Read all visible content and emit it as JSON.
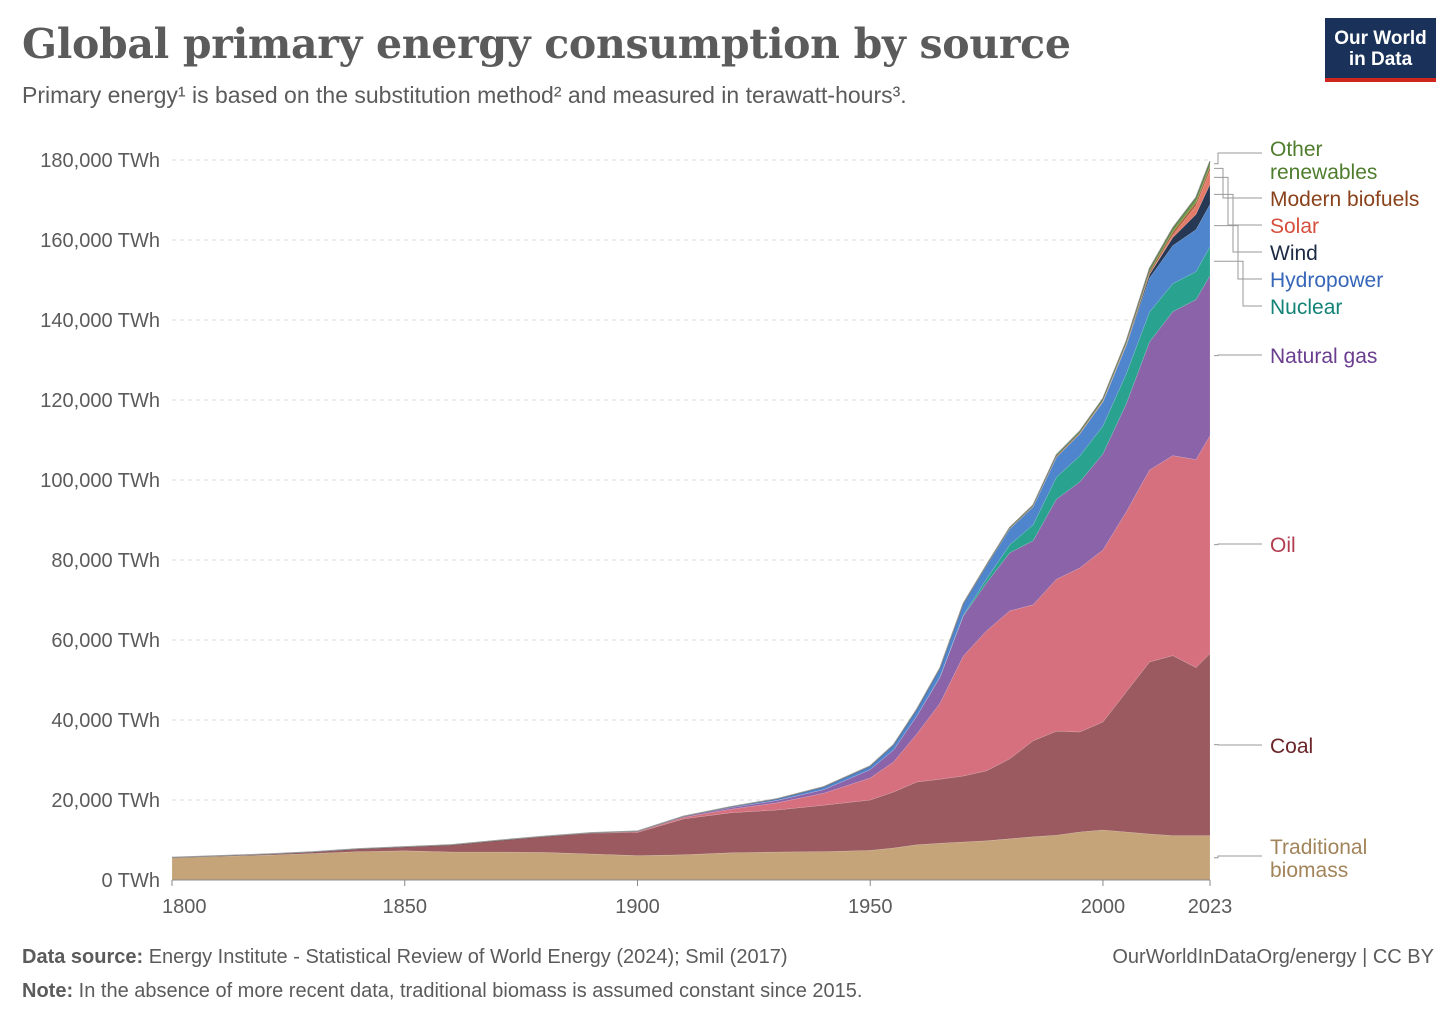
{
  "header": {
    "title": "Global primary energy consumption by source",
    "subtitle": "Primary energy¹ is based on the substitution method² and measured in terawatt-hours³."
  },
  "logo": {
    "line1": "Our World",
    "line2": "in Data"
  },
  "footer": {
    "source_label": "Data source:",
    "source_text": "Energy Institute - Statistical Review of World Energy (2024); Smil (2017)",
    "note_label": "Note:",
    "note_text": "In the absence of more recent data, traditional biomass is assumed constant since 2015.",
    "link": "OurWorldInDataOrg/energy | CC BY"
  },
  "chart_data": {
    "type": "area",
    "stacked": true,
    "x": [
      1800,
      1810,
      1820,
      1830,
      1840,
      1850,
      1860,
      1870,
      1880,
      1890,
      1900,
      1910,
      1920,
      1930,
      1940,
      1950,
      1955,
      1960,
      1965,
      1970,
      1975,
      1980,
      1985,
      1990,
      1995,
      2000,
      2005,
      2010,
      2015,
      2020,
      2023
    ],
    "x_ticks": [
      1800,
      1850,
      1900,
      1950,
      2000,
      2023
    ],
    "y_ticks": [
      "0 TWh",
      "20,000 TWh",
      "40,000 TWh",
      "60,000 TWh",
      "80,000 TWh",
      "100,000 TWh",
      "120,000 TWh",
      "140,000 TWh",
      "160,000 TWh",
      "180,000 TWh"
    ],
    "ylim": [
      0,
      180000
    ],
    "grid": "horizontal dashed",
    "legend": "right, labels at series ends",
    "series": [
      {
        "name": "Traditional biomass",
        "color": "#c5a479",
        "label_color": "#a2845a",
        "values": [
          5560,
          5900,
          6200,
          6600,
          7100,
          7300,
          7000,
          7000,
          6900,
          6500,
          6100,
          6300,
          6800,
          7000,
          7100,
          7400,
          8000,
          8800,
          9200,
          9500,
          9800,
          10300,
          10800,
          11200,
          12000,
          12500,
          12000,
          11500,
          11100,
          11100,
          11100
        ]
      },
      {
        "name": "Coal",
        "color": "#9a5a5f",
        "label_color": "#6a2428",
        "values": [
          100,
          150,
          250,
          400,
          700,
          1000,
          1800,
          2900,
          4000,
          5200,
          5800,
          9000,
          10000,
          10500,
          11600,
          12600,
          14000,
          15700,
          16000,
          16500,
          17500,
          20000,
          24000,
          26000,
          25000,
          27000,
          35000,
          43000,
          45000,
          42000,
          45500
        ]
      },
      {
        "name": "Oil",
        "color": "#d6707f",
        "label_color": "#b33c4f",
        "values": [
          0,
          0,
          0,
          0,
          0,
          0,
          0,
          0,
          10,
          50,
          200,
          400,
          900,
          1800,
          3000,
          5500,
          7500,
          12000,
          19000,
          30000,
          35000,
          37000,
          34000,
          38000,
          41000,
          43000,
          45000,
          48000,
          50000,
          52000,
          54500
        ]
      },
      {
        "name": "Natural gas",
        "color": "#8b63a8",
        "label_color": "#6a3d8f",
        "values": [
          0,
          0,
          0,
          0,
          0,
          0,
          0,
          0,
          10,
          40,
          100,
          200,
          400,
          600,
          900,
          2100,
          3000,
          4500,
          6500,
          10000,
          12000,
          14500,
          16000,
          20000,
          21500,
          24000,
          27000,
          32000,
          36000,
          40000,
          40000
        ]
      },
      {
        "name": "Nuclear",
        "color": "#29a38f",
        "label_color": "#138277",
        "values": [
          0,
          0,
          0,
          0,
          0,
          0,
          0,
          0,
          0,
          0,
          0,
          0,
          0,
          0,
          0,
          0,
          0,
          10,
          100,
          200,
          1000,
          2000,
          4000,
          5500,
          6500,
          7000,
          7500,
          7500,
          7000,
          7000,
          7200
        ]
      },
      {
        "name": "Hydropower",
        "color": "#4f85cd",
        "label_color": "#3666b8",
        "values": [
          0,
          0,
          0,
          0,
          0,
          0,
          0,
          0,
          0,
          0,
          0,
          50,
          200,
          400,
          700,
          900,
          1300,
          1700,
          2200,
          2800,
          3300,
          4000,
          4500,
          5000,
          5500,
          6000,
          7000,
          8500,
          9500,
          10500,
          10600
        ]
      },
      {
        "name": "Wind",
        "color": "#263854",
        "label_color": "#1c2a44",
        "values": [
          0,
          0,
          0,
          0,
          0,
          0,
          0,
          0,
          0,
          0,
          0,
          0,
          0,
          0,
          0,
          0,
          0,
          0,
          0,
          0,
          0,
          0,
          0,
          0,
          20,
          80,
          250,
          850,
          2000,
          3800,
          5000
        ]
      },
      {
        "name": "Solar",
        "color": "#e47b6a",
        "label_color": "#d64f3c",
        "values": [
          0,
          0,
          0,
          0,
          0,
          0,
          0,
          0,
          0,
          0,
          0,
          0,
          0,
          0,
          0,
          0,
          0,
          0,
          0,
          0,
          0,
          0,
          0,
          0,
          0,
          10,
          20,
          100,
          650,
          2200,
          3500
        ]
      },
      {
        "name": "Modern biofuels",
        "color": "#a9633b",
        "label_color": "#8a421b",
        "values": [
          0,
          0,
          0,
          0,
          0,
          0,
          0,
          0,
          0,
          0,
          0,
          0,
          0,
          0,
          0,
          0,
          0,
          0,
          0,
          0,
          50,
          120,
          180,
          220,
          250,
          260,
          350,
          600,
          780,
          850,
          1000
        ]
      },
      {
        "name": "Other renewables",
        "color": "#6b9a4a",
        "label_color": "#4f7d2e",
        "values": [
          0,
          0,
          0,
          0,
          0,
          0,
          0,
          0,
          0,
          0,
          0,
          0,
          0,
          0,
          0,
          0,
          0,
          0,
          0,
          100,
          150,
          200,
          250,
          350,
          400,
          500,
          550,
          800,
          1000,
          1200,
          1300
        ]
      }
    ],
    "legend_labels": [
      {
        "lines": [
          "Other",
          "renewables"
        ],
        "series": "Other renewables"
      },
      {
        "lines": [
          "Modern biofuels"
        ],
        "series": "Modern biofuels"
      },
      {
        "lines": [
          "Solar"
        ],
        "series": "Solar"
      },
      {
        "lines": [
          "Wind"
        ],
        "series": "Wind"
      },
      {
        "lines": [
          "Hydropower"
        ],
        "series": "Hydropower"
      },
      {
        "lines": [
          "Nuclear"
        ],
        "series": "Nuclear"
      },
      {
        "lines": [
          "Natural gas"
        ],
        "series": "Natural gas"
      },
      {
        "lines": [
          "Oil"
        ],
        "series": "Oil"
      },
      {
        "lines": [
          "Coal"
        ],
        "series": "Coal"
      },
      {
        "lines": [
          "Traditional",
          "biomass"
        ],
        "series": "Traditional biomass"
      }
    ]
  }
}
